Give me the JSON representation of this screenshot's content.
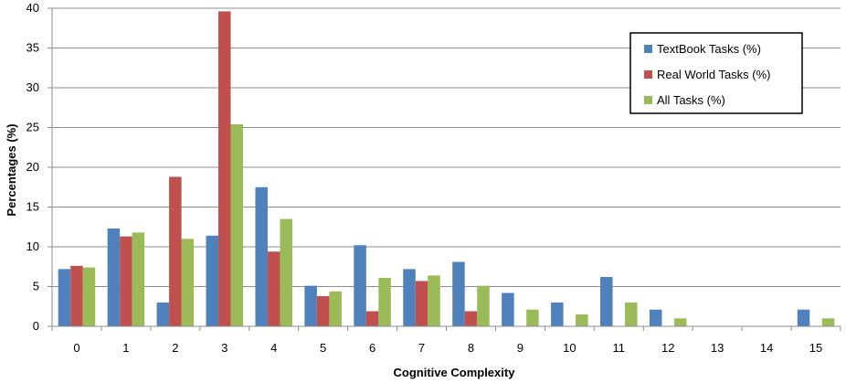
{
  "chart_data": {
    "type": "bar",
    "title": "",
    "xlabel": "Cognitive  Complexity",
    "ylabel": "Percentages (%)",
    "ylim": [
      0,
      40
    ],
    "yticks": [
      0,
      5,
      10,
      15,
      20,
      25,
      30,
      35,
      40
    ],
    "grid": true,
    "legend_position": "top-right",
    "categories": [
      "0",
      "1",
      "2",
      "3",
      "4",
      "5",
      "6",
      "7",
      "8",
      "9",
      "10",
      "11",
      "12",
      "13",
      "14",
      "15"
    ],
    "series": [
      {
        "name": "TextBook Tasks (%)",
        "color": "#4F81BD",
        "values": [
          7.2,
          12.3,
          3.0,
          11.4,
          17.5,
          5.1,
          10.2,
          7.2,
          8.1,
          4.2,
          3.0,
          6.2,
          2.1,
          0,
          0,
          2.1
        ]
      },
      {
        "name": "Real World Tasks (%)",
        "color": "#C0504D",
        "values": [
          7.6,
          11.3,
          18.8,
          39.6,
          9.4,
          3.8,
          1.9,
          5.7,
          1.9,
          0,
          0,
          0,
          0,
          0,
          0,
          0
        ]
      },
      {
        "name": "All Tasks (%)",
        "color": "#9BBB59",
        "values": [
          7.4,
          11.8,
          11.0,
          25.4,
          13.5,
          4.4,
          6.1,
          6.4,
          5.1,
          2.1,
          1.5,
          3.0,
          1.0,
          0,
          0,
          1.0
        ]
      }
    ]
  }
}
